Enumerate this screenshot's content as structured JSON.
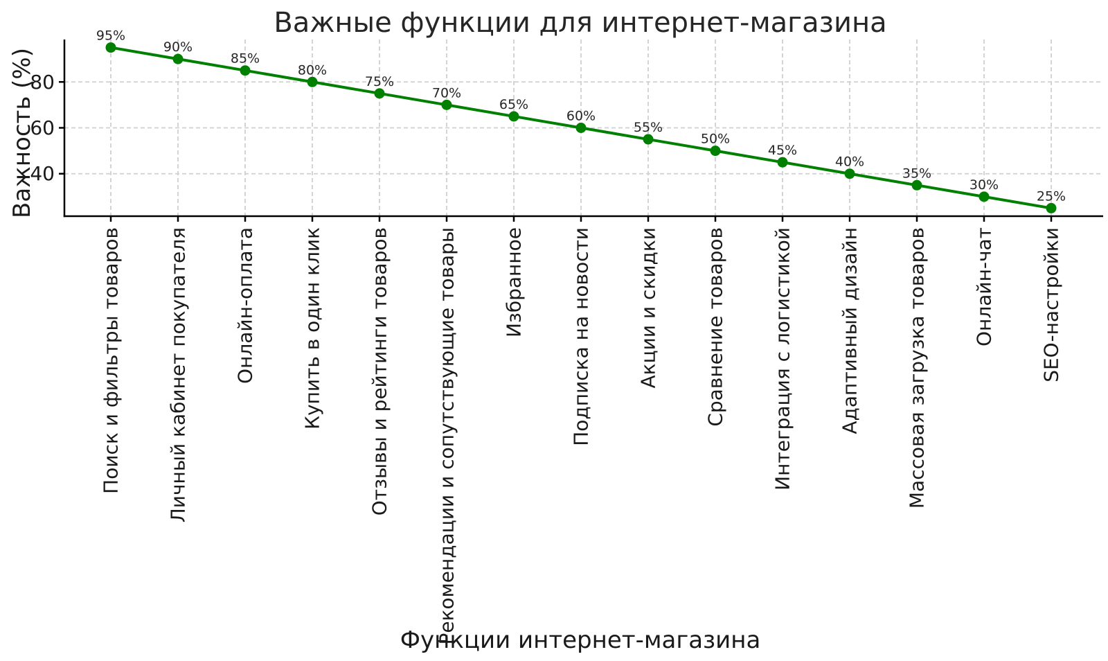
{
  "chart_data": {
    "type": "line",
    "title": "Важные функции для интернет-магазина",
    "xlabel": "Функции интернет-магазина",
    "ylabel": "Важность (%)",
    "categories": [
      "Поиск и фильтры товаров",
      "Личный кабинет покупателя",
      "Онлайн-оплата",
      "Купить в один клик",
      "Отзывы и рейтинги товаров",
      "Рекомендации и сопутствующие товары",
      "Избранное",
      "Подписка на новости",
      "Акции и скидки",
      "Сравнение товаров",
      "Интеграция с логистикой",
      "Адаптивный дизайн",
      "Массовая загрузка товаров",
      "Онлайн-чат",
      "SEO-настройки"
    ],
    "values": [
      95,
      90,
      85,
      80,
      75,
      70,
      65,
      60,
      55,
      50,
      45,
      40,
      35,
      30,
      25
    ],
    "point_labels": [
      "95%",
      "90%",
      "85%",
      "80%",
      "75%",
      "70%",
      "65%",
      "60%",
      "55%",
      "50%",
      "45%",
      "40%",
      "35%",
      "30%",
      "25%"
    ],
    "yticks": [
      40,
      60,
      80
    ],
    "ylim": [
      21.5,
      98.5
    ],
    "grid": true,
    "grid_style": "dashed",
    "legend": "none",
    "marker": "circle",
    "colors": {
      "line": "#008000",
      "marker": "#008000",
      "grid": "#d0d0d0",
      "axis": "#000000",
      "text": "#262626"
    }
  }
}
